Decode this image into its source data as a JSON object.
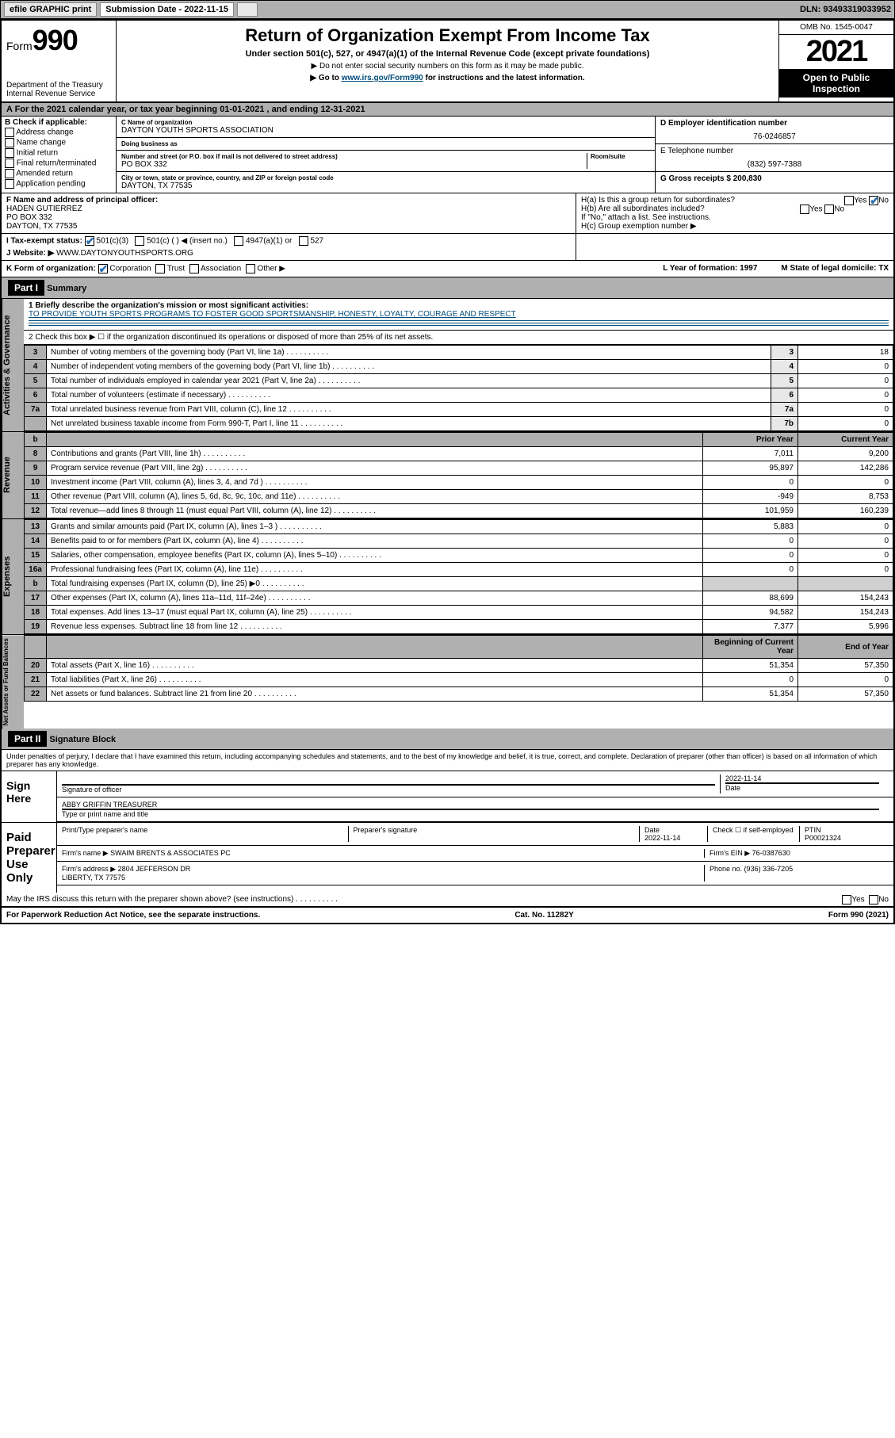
{
  "topbar": {
    "efile": "efile GRAPHIC print",
    "sub_label": "Submission Date - 2022-11-15",
    "dln": "DLN: 93493319033952"
  },
  "header": {
    "form_word": "Form",
    "form_num": "990",
    "dept": "Department of the Treasury\nInternal Revenue Service",
    "title": "Return of Organization Exempt From Income Tax",
    "sub1": "Under section 501(c), 527, or 4947(a)(1) of the Internal Revenue Code (except private foundations)",
    "sub2": "▶ Do not enter social security numbers on this form as it may be made public.",
    "sub3_pre": "▶ Go to ",
    "sub3_link": "www.irs.gov/Form990",
    "sub3_post": " for instructions and the latest information.",
    "omb": "OMB No. 1545-0047",
    "year": "2021",
    "otp": "Open to Public Inspection"
  },
  "lineA": "A For the 2021 calendar year, or tax year beginning 01-01-2021   , and ending 12-31-2021",
  "boxB": {
    "label": "B Check if applicable:",
    "items": [
      "Address change",
      "Name change",
      "Initial return",
      "Final return/terminated",
      "Amended return",
      "Application pending"
    ]
  },
  "boxC": {
    "name_lbl": "C Name of organization",
    "name": "DAYTON YOUTH SPORTS ASSOCIATION",
    "dba_lbl": "Doing business as",
    "dba": "",
    "addr_lbl": "Number and street (or P.O. box if mail is not delivered to street address)",
    "room_lbl": "Room/suite",
    "addr": "PO BOX 332",
    "city_lbl": "City or town, state or province, country, and ZIP or foreign postal code",
    "city": "DAYTON, TX  77535"
  },
  "boxD": {
    "lbl": "D Employer identification number",
    "val": "76-0246857"
  },
  "boxE": {
    "lbl": "E Telephone number",
    "val": "(832) 597-7388"
  },
  "boxG": {
    "lbl": "G Gross receipts $",
    "val": "200,830"
  },
  "boxF": {
    "lbl": "F Name and address of principal officer:",
    "name": "HADEN GUTIERREZ",
    "addr": "PO BOX 332\nDAYTON, TX  77535"
  },
  "boxH": {
    "ha": "H(a)  Is this a group return for subordinates?",
    "hb": "H(b)  Are all subordinates included?",
    "hb_note": "If \"No,\" attach a list. See instructions.",
    "hc": "H(c)  Group exemption number ▶",
    "yes": "Yes",
    "no": "No"
  },
  "rowI": {
    "lbl": "I   Tax-exempt status:",
    "opts": [
      "501(c)(3)",
      "501(c) (  ) ◀ (insert no.)",
      "4947(a)(1) or",
      "527"
    ]
  },
  "rowJ": {
    "lbl": "J   Website: ▶",
    "val": "WWW.DAYTONYOUTHSPORTS.ORG"
  },
  "rowK": {
    "lbl": "K Form of organization:",
    "opts": [
      "Corporation",
      "Trust",
      "Association",
      "Other ▶"
    ],
    "L": "L Year of formation: 1997",
    "M": "M State of legal domicile: TX"
  },
  "part1": {
    "hdr": "Part I",
    "title": "Summary",
    "q1": "1  Briefly describe the organization's mission or most significant activities:",
    "mission": "TO PROVIDE YOUTH SPORTS PROGRAMS TO FOSTER GOOD SPORTSMANSHIP, HONESTY, LOYALTY, COURAGE AND RESPECT",
    "q2": "2   Check this box ▶ ☐  if the organization discontinued its operations or disposed of more than 25% of its net assets.",
    "gov_lines": [
      {
        "n": "3",
        "t": "Number of voting members of the governing body (Part VI, line 1a)",
        "ln": "3",
        "v": "18"
      },
      {
        "n": "4",
        "t": "Number of independent voting members of the governing body (Part VI, line 1b)",
        "ln": "4",
        "v": "0"
      },
      {
        "n": "5",
        "t": "Total number of individuals employed in calendar year 2021 (Part V, line 2a)",
        "ln": "5",
        "v": "0"
      },
      {
        "n": "6",
        "t": "Total number of volunteers (estimate if necessary)",
        "ln": "6",
        "v": "0"
      },
      {
        "n": "7a",
        "t": "Total unrelated business revenue from Part VIII, column (C), line 12",
        "ln": "7a",
        "v": "0"
      },
      {
        "n": "",
        "t": "Net unrelated business taxable income from Form 990-T, Part I, line 11",
        "ln": "7b",
        "v": "0"
      }
    ],
    "col_hdr": {
      "b": "b",
      "py": "Prior Year",
      "cy": "Current Year"
    },
    "rev_lines": [
      {
        "n": "8",
        "t": "Contributions and grants (Part VIII, line 1h)",
        "py": "7,011",
        "cy": "9,200"
      },
      {
        "n": "9",
        "t": "Program service revenue (Part VIII, line 2g)",
        "py": "95,897",
        "cy": "142,286"
      },
      {
        "n": "10",
        "t": "Investment income (Part VIII, column (A), lines 3, 4, and 7d )",
        "py": "0",
        "cy": "0"
      },
      {
        "n": "11",
        "t": "Other revenue (Part VIII, column (A), lines 5, 6d, 8c, 9c, 10c, and 11e)",
        "py": "-949",
        "cy": "8,753"
      },
      {
        "n": "12",
        "t": "Total revenue—add lines 8 through 11 (must equal Part VIII, column (A), line 12)",
        "py": "101,959",
        "cy": "160,239"
      }
    ],
    "exp_lines": [
      {
        "n": "13",
        "t": "Grants and similar amounts paid (Part IX, column (A), lines 1–3 )",
        "py": "5,883",
        "cy": "0"
      },
      {
        "n": "14",
        "t": "Benefits paid to or for members (Part IX, column (A), line 4)",
        "py": "0",
        "cy": "0"
      },
      {
        "n": "15",
        "t": "Salaries, other compensation, employee benefits (Part IX, column (A), lines 5–10)",
        "py": "0",
        "cy": "0"
      },
      {
        "n": "16a",
        "t": "Professional fundraising fees (Part IX, column (A), line 11e)",
        "py": "0",
        "cy": "0"
      },
      {
        "n": "b",
        "t": "Total fundraising expenses (Part IX, column (D), line 25) ▶0",
        "py": "",
        "cy": "",
        "shade": true
      },
      {
        "n": "17",
        "t": "Other expenses (Part IX, column (A), lines 11a–11d, 11f–24e)",
        "py": "88,699",
        "cy": "154,243"
      },
      {
        "n": "18",
        "t": "Total expenses. Add lines 13–17 (must equal Part IX, column (A), line 25)",
        "py": "94,582",
        "cy": "154,243"
      },
      {
        "n": "19",
        "t": "Revenue less expenses. Subtract line 18 from line 12",
        "py": "7,377",
        "cy": "5,996"
      }
    ],
    "na_hdr": {
      "b": "Beginning of Current Year",
      "e": "End of Year"
    },
    "na_lines": [
      {
        "n": "20",
        "t": "Total assets (Part X, line 16)",
        "py": "51,354",
        "cy": "57,350"
      },
      {
        "n": "21",
        "t": "Total liabilities (Part X, line 26)",
        "py": "0",
        "cy": "0"
      },
      {
        "n": "22",
        "t": "Net assets or fund balances. Subtract line 21 from line 20",
        "py": "51,354",
        "cy": "57,350"
      }
    ],
    "vtabs": {
      "gov": "Activities & Governance",
      "rev": "Revenue",
      "exp": "Expenses",
      "na": "Net Assets or Fund Balances"
    }
  },
  "part2": {
    "hdr": "Part II",
    "title": "Signature Block",
    "decl": "Under penalties of perjury, I declare that I have examined this return, including accompanying schedules and statements, and to the best of my knowledge and belief, it is true, correct, and complete. Declaration of preparer (other than officer) is based on all information of which preparer has any knowledge.",
    "sign_here": "Sign Here",
    "sig_officer": "Signature of officer",
    "sig_date": "Date",
    "sig_date_val": "2022-11-14",
    "officer_name": "ABBY GRIFFIN  TREASURER",
    "type_name": "Type or print name and title",
    "paid": "Paid Preparer Use Only",
    "prep_name_lbl": "Print/Type preparer's name",
    "prep_sig_lbl": "Preparer's signature",
    "prep_date_lbl": "Date",
    "prep_date": "2022-11-14",
    "check_self": "Check ☐ if self-employed",
    "ptin_lbl": "PTIN",
    "ptin": "P00021324",
    "firm_name_lbl": "Firm's name    ▶",
    "firm_name": "SWAIM BRENTS & ASSOCIATES PC",
    "firm_ein_lbl": "Firm's EIN ▶",
    "firm_ein": "76-0387630",
    "firm_addr_lbl": "Firm's address ▶",
    "firm_addr": "2804 JEFFERSON DR\nLIBERTY, TX  77575",
    "phone_lbl": "Phone no.",
    "phone": "(936) 336-7205",
    "may_irs": "May the IRS discuss this return with the preparer shown above? (see instructions)"
  },
  "footer": {
    "left": "For Paperwork Reduction Act Notice, see the separate instructions.",
    "mid": "Cat. No. 11282Y",
    "right": "Form 990 (2021)"
  }
}
